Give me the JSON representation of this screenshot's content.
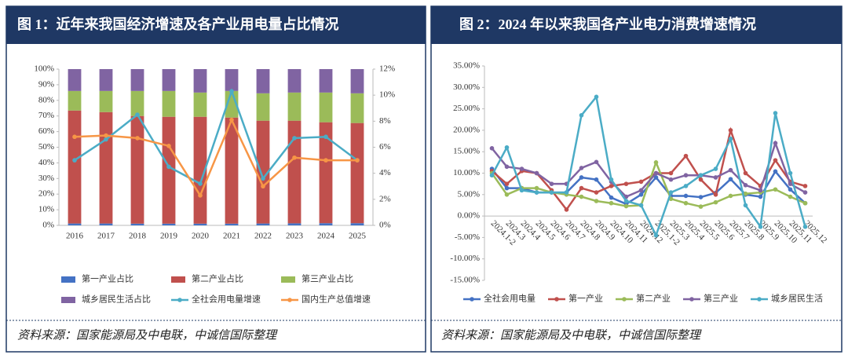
{
  "chart_data": [
    {
      "type": "bar",
      "title": "图 1：近年来我国经济增速及各产业用电量占比情况",
      "source": "资料来源：国家能源局及中电联，中诚信国际整理",
      "categories": [
        "2016",
        "2017",
        "2018",
        "2019",
        "2020",
        "2021",
        "2022",
        "2023",
        "2024",
        "2025"
      ],
      "ylim": [
        0,
        100
      ],
      "yticks": [
        {
          "value": 0,
          "label": "0%"
        },
        {
          "value": 10,
          "label": "10%"
        },
        {
          "value": 20,
          "label": "20%"
        },
        {
          "value": 30,
          "label": "30%"
        },
        {
          "value": 40,
          "label": "40%"
        },
        {
          "value": 50,
          "label": "50%"
        },
        {
          "value": 60,
          "label": "60%"
        },
        {
          "value": 70,
          "label": "70%"
        },
        {
          "value": 80,
          "label": "80%"
        },
        {
          "value": 90,
          "label": "90%"
        },
        {
          "value": 100,
          "label": "100%"
        }
      ],
      "y2lim": [
        0,
        12
      ],
      "y2ticks": [
        {
          "value": 0,
          "label": "0%"
        },
        {
          "value": 2,
          "label": "2%"
        },
        {
          "value": 4,
          "label": "4%"
        },
        {
          "value": 6,
          "label": "6%"
        },
        {
          "value": 8,
          "label": "8%"
        },
        {
          "value": 10,
          "label": "10%"
        },
        {
          "value": 12,
          "label": "12%"
        }
      ],
      "grid": false,
      "series": [
        {
          "name": "第一产业占比",
          "color": "#4472c4",
          "values": [
            1.2,
            1.2,
            1.1,
            1.1,
            1.1,
            1.1,
            1.2,
            1.3,
            1.4,
            1.4
          ]
        },
        {
          "name": "第二产业占比",
          "color": "#c0504d",
          "values": [
            72.3,
            71.3,
            68.9,
            68.4,
            68.4,
            67.9,
            65.8,
            65.7,
            64.6,
            64.1
          ]
        },
        {
          "name": "第三产业占比",
          "color": "#9bbb59",
          "values": [
            12.5,
            13.5,
            16.0,
            16.5,
            15.5,
            17.0,
            17.5,
            18.0,
            19.0,
            19.0
          ]
        },
        {
          "name": "城乡居民生活占比",
          "color": "#8064a2",
          "values": [
            14.0,
            14.0,
            14.0,
            14.0,
            15.0,
            14.0,
            15.5,
            15.0,
            15.0,
            15.5
          ]
        },
        {
          "name": "全社会用电量增速",
          "color": "#4bacc6",
          "axis": "y2",
          "values": [
            5.0,
            6.6,
            8.5,
            4.5,
            3.2,
            10.3,
            3.6,
            6.7,
            6.8,
            5.0
          ]
        },
        {
          "name": "国内生产总值增速",
          "color": "#f79646",
          "axis": "y2",
          "values": [
            6.8,
            6.9,
            6.7,
            6.1,
            2.3,
            8.1,
            3.0,
            5.2,
            5.0,
            5.0
          ]
        }
      ]
    },
    {
      "type": "line",
      "title": "图 2：2024 年以来我国各产业电力消费增速情况",
      "source": "资料来源：国家能源局及中电联，中诚信国际整理",
      "categories": [
        "2024.1-2",
        "2024.3",
        "2024.4",
        "2024.5",
        "2024.6",
        "2024.7",
        "2024.8",
        "2024.9",
        "2024.10",
        "2024.11",
        "2024.12",
        "2025.1-2",
        "2025.3",
        "2025.4",
        "2025.5",
        "2025.6",
        "2025.7",
        "2025.8",
        "2025.9",
        "2025.10",
        "2025.11",
        "2025.12"
      ],
      "ylim": [
        -15,
        35
      ],
      "yticks": [
        {
          "value": -15,
          "label": "-15.00%"
        },
        {
          "value": -10,
          "label": "-10.00%"
        },
        {
          "value": -5,
          "label": "-5.00%"
        },
        {
          "value": 0,
          "label": "0.00%"
        },
        {
          "value": 5,
          "label": "5.00%"
        },
        {
          "value": 10,
          "label": "10.00%"
        },
        {
          "value": 15,
          "label": "15.00%"
        },
        {
          "value": 20,
          "label": "20.00%"
        },
        {
          "value": 25,
          "label": "25.00%"
        },
        {
          "value": 30,
          "label": "30.00%"
        },
        {
          "value": 35,
          "label": "35.00%"
        }
      ],
      "grid": false,
      "series": [
        {
          "name": "全社会用电量",
          "color": "#4472c4",
          "values": [
            11.0,
            6.5,
            6.5,
            5.5,
            5.5,
            5.5,
            9.0,
            8.5,
            4.3,
            2.8,
            5.0,
            9.0,
            4.7,
            4.7,
            4.4,
            5.4,
            8.6,
            5.0,
            4.5,
            10.4,
            6.2,
            3.0
          ]
        },
        {
          "name": "第一产业",
          "color": "#c0504d",
          "values": [
            10.5,
            7.5,
            10.5,
            10.0,
            6.0,
            1.5,
            6.5,
            5.5,
            7.0,
            7.5,
            8.0,
            10.0,
            10.0,
            14.0,
            8.5,
            5.0,
            20.0,
            10.0,
            7.0,
            13.0,
            8.0,
            7.0
          ]
        },
        {
          "name": "第二产业",
          "color": "#9bbb59",
          "values": [
            10.0,
            5.0,
            6.5,
            6.5,
            5.5,
            5.0,
            4.5,
            3.5,
            3.0,
            2.3,
            2.5,
            12.5,
            4.0,
            3.0,
            2.2,
            3.2,
            4.7,
            5.2,
            5.5,
            6.2,
            4.5,
            3.0
          ]
        },
        {
          "name": "第三产业",
          "color": "#8064a2",
          "values": [
            15.8,
            11.5,
            11.0,
            10.0,
            7.5,
            7.5,
            11.2,
            12.6,
            8.0,
            4.5,
            6.0,
            10.0,
            8.5,
            9.5,
            9.5,
            9.0,
            10.7,
            7.2,
            6.0,
            17.0,
            7.5,
            5.5
          ]
        },
        {
          "name": "城乡居民生活",
          "color": "#4bacc6",
          "values": [
            9.5,
            16.0,
            6.0,
            5.5,
            5.5,
            5.5,
            23.5,
            27.8,
            8.5,
            3.5,
            2.5,
            -4.5,
            5.5,
            7.0,
            9.5,
            11.0,
            18.0,
            2.5,
            -2.5,
            24.0,
            10.0,
            -2.5
          ]
        }
      ]
    }
  ]
}
